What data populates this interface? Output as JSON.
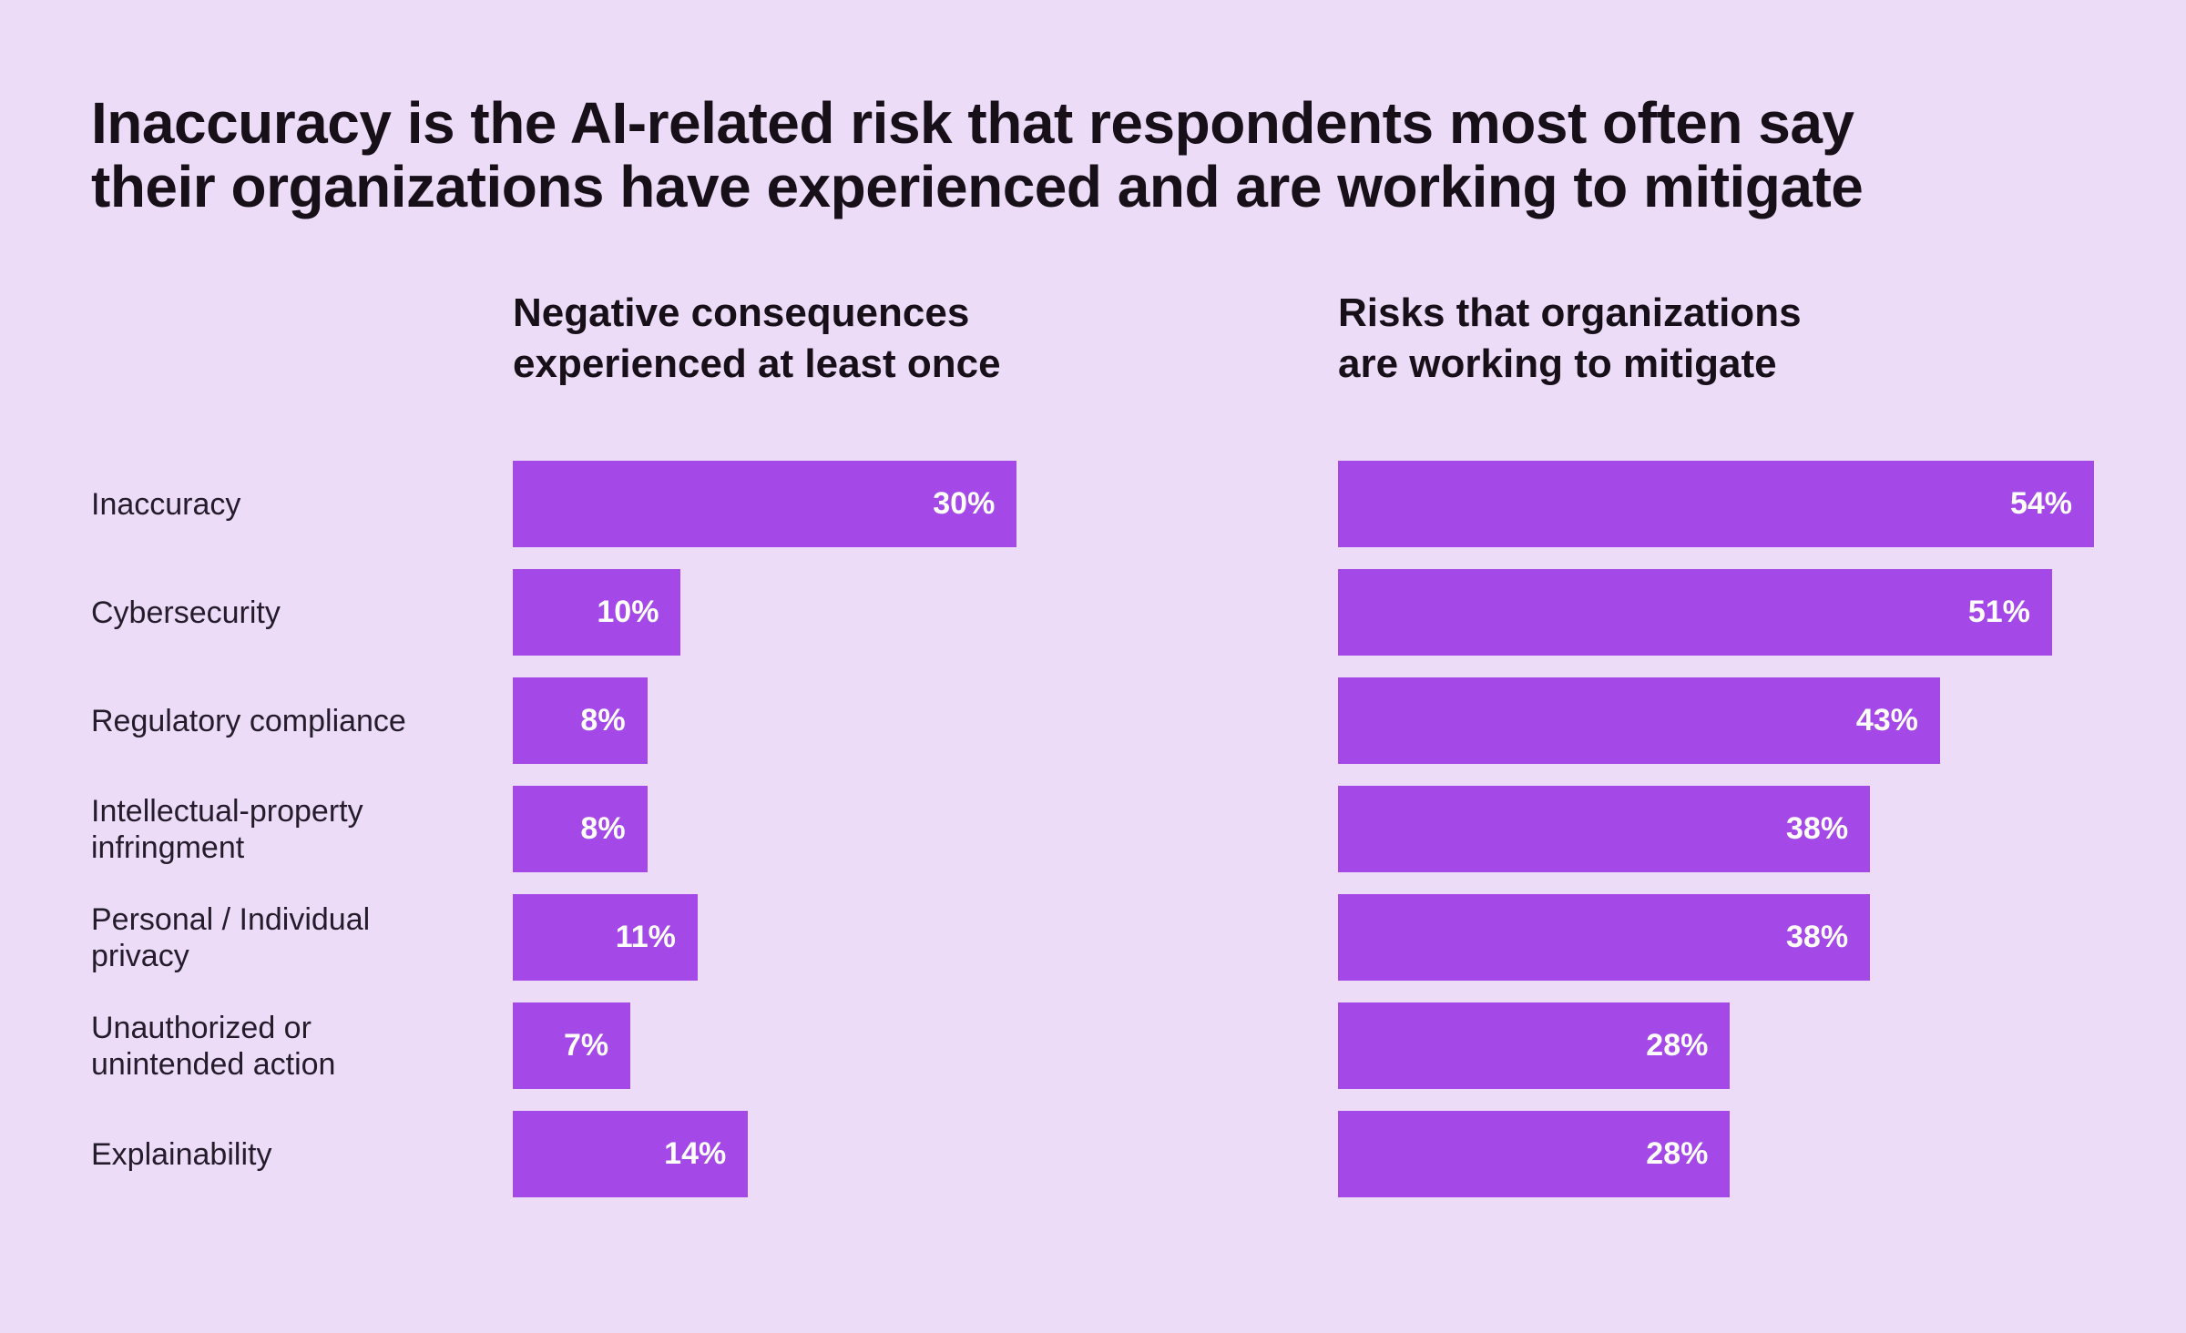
{
  "page": {
    "background_color": "#ECDCF8",
    "text_color": "#171019"
  },
  "title": {
    "lines": [
      "Inaccuracy is the AI-related risk that respondents most often say",
      "their organizations have experienced and are working to mitigate"
    ]
  },
  "chart_data": [
    {
      "type": "bar",
      "orientation": "horizontal",
      "title": "Negative consequences experienced at least once",
      "title_lines": [
        "Negative consequences",
        "experienced at least once"
      ],
      "categories": [
        "Inaccuracy",
        "Cybersecurity",
        "Regulatory compliance",
        "Intellectual-property infringment",
        "Personal / Individual privacy",
        "Unauthorized or unintended action",
        "Explainability"
      ],
      "values": [
        30,
        10,
        8,
        8,
        11,
        7,
        14
      ],
      "unit": "%",
      "xlim": [
        0,
        45
      ],
      "grid": false,
      "legend": false,
      "bar_color": "#A448E8",
      "value_label_color": "#FFFFFF",
      "value_label_position": "inside-right"
    },
    {
      "type": "bar",
      "orientation": "horizontal",
      "title": "Risks that organizations are working to mitigate",
      "title_lines": [
        "Risks that organizations",
        "are working to mitigate"
      ],
      "categories": [
        "Inaccuracy",
        "Cybersecurity",
        "Regulatory compliance",
        "Intellectual-property infringment",
        "Personal / Individual privacy",
        "Unauthorized or unintended action",
        "Explainability"
      ],
      "values": [
        54,
        51,
        43,
        38,
        38,
        28,
        28
      ],
      "unit": "%",
      "xlim": [
        0,
        54
      ],
      "grid": false,
      "legend": false,
      "bar_color": "#A448E8",
      "value_label_color": "#FFFFFF",
      "value_label_position": "inside-right"
    }
  ]
}
